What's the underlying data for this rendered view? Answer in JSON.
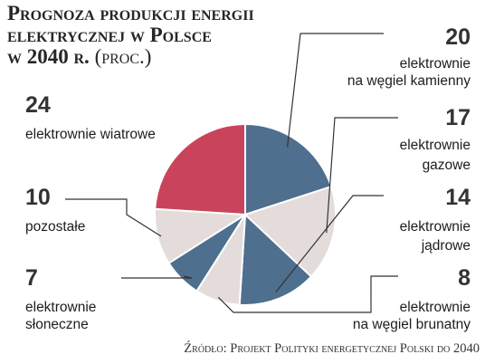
{
  "title": {
    "line1": "Prognoza produkcji energii",
    "line2": "elektrycznej w Polsce",
    "line3": "w 2040 r.",
    "unit": "(proc.)"
  },
  "colors": {
    "blue": "#4e6f8e",
    "red": "#c9445a",
    "gray": "#e4dcda",
    "leader": "#333333"
  },
  "chart_data": {
    "type": "pie",
    "title": "Prognoza produkcji energii elektrycznej w Polsce w 2040 r. (proc.)",
    "unit": "proc.",
    "slices": [
      {
        "value": 20,
        "value_text": "20",
        "label_lines": [
          "elektrownie",
          "na węgiel kamienny"
        ],
        "color": "#4e6f8e"
      },
      {
        "value": 17,
        "value_text": "17",
        "label_lines": [
          "elektrownie",
          "gazowe"
        ],
        "color": "#e4dcda"
      },
      {
        "value": 14,
        "value_text": "14",
        "label_lines": [
          "elektrownie",
          "jądrowe"
        ],
        "color": "#4e6f8e"
      },
      {
        "value": 8,
        "value_text": "8",
        "label_lines": [
          "elektrownie",
          "na węgiel brunatny"
        ],
        "color": "#e4dcda"
      },
      {
        "value": 7,
        "value_text": "7",
        "label_lines": [
          "elektrownie",
          "słoneczne"
        ],
        "color": "#4e6f8e"
      },
      {
        "value": 10,
        "value_text": "10",
        "label_lines": [
          "pozostałe"
        ],
        "color": "#e4dcda"
      },
      {
        "value": 24,
        "value_text": "24",
        "label_lines": [
          "elektrownie wiatrowe"
        ],
        "color": "#c9445a"
      }
    ]
  },
  "source": "Źródło: Projekt Polityki energetycznej Polski do 2040"
}
